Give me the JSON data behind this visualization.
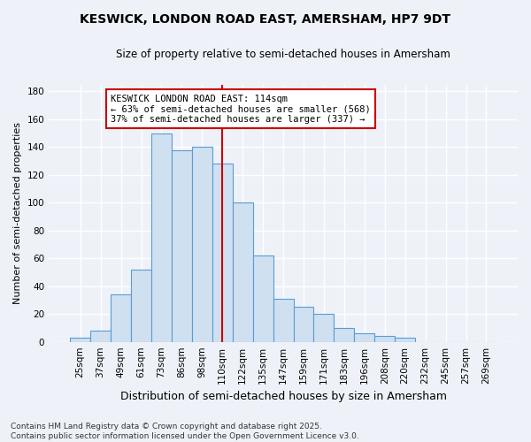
{
  "title": "KESWICK, LONDON ROAD EAST, AMERSHAM, HP7 9DT",
  "subtitle": "Size of property relative to semi-detached houses in Amersham",
  "xlabel": "Distribution of semi-detached houses by size in Amersham",
  "ylabel": "Number of semi-detached properties",
  "bins": [
    "25sqm",
    "37sqm",
    "49sqm",
    "61sqm",
    "73sqm",
    "86sqm",
    "98sqm",
    "110sqm",
    "122sqm",
    "135sqm",
    "147sqm",
    "159sqm",
    "171sqm",
    "183sqm",
    "196sqm",
    "208sqm",
    "220sqm",
    "232sqm",
    "245sqm",
    "257sqm",
    "269sqm"
  ],
  "values": [
    3,
    8,
    34,
    52,
    150,
    138,
    140,
    128,
    100,
    62,
    31,
    25,
    20,
    10,
    6,
    4,
    3,
    0,
    0,
    0,
    0
  ],
  "bar_color": "#cfe0f0",
  "bar_edge_color": "#5b9bd5",
  "property_bin_index": 7,
  "annotation_line1": "KESWICK LONDON ROAD EAST: 114sqm",
  "annotation_line2": "← 63% of semi-detached houses are smaller (568)",
  "annotation_line3": "37% of semi-detached houses are larger (337) →",
  "annotation_box_color": "#ffffff",
  "annotation_box_edge": "#cc0000",
  "vline_color": "#cc0000",
  "footer_text": "Contains HM Land Registry data © Crown copyright and database right 2025.\nContains public sector information licensed under the Open Government Licence v3.0.",
  "ylim": [
    0,
    185
  ],
  "background_color": "#eef2f8",
  "grid_color": "#ffffff",
  "title_fontsize": 10,
  "subtitle_fontsize": 8.5,
  "xlabel_fontsize": 9,
  "ylabel_fontsize": 8,
  "tick_fontsize": 7.5,
  "annotation_fontsize": 7.5,
  "footer_fontsize": 6.5
}
